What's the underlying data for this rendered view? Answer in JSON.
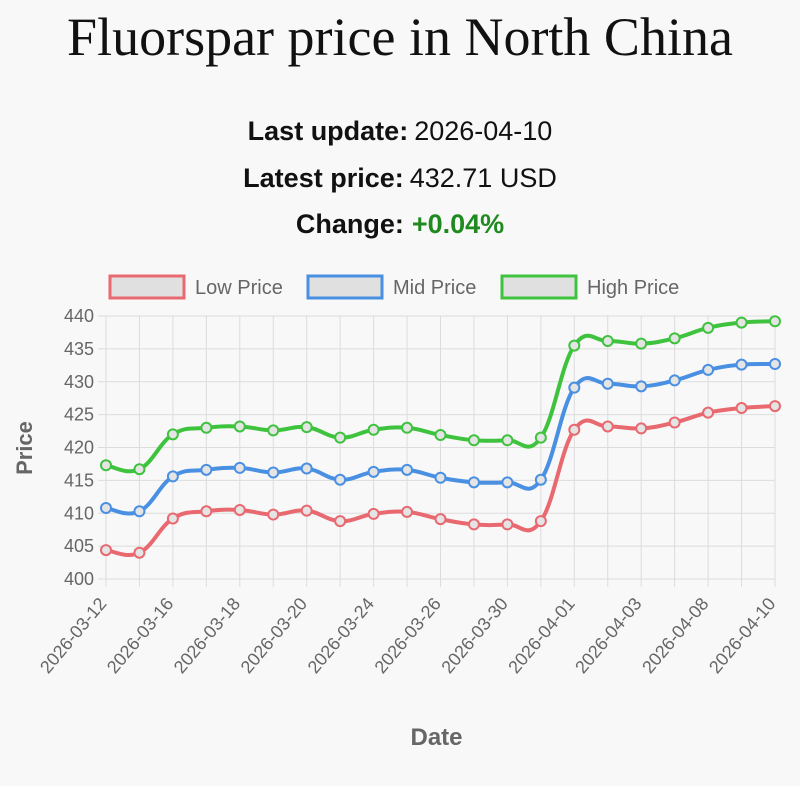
{
  "header": {
    "title": "Fluorspar price in North China",
    "last_update_label": "Last update:",
    "last_update_value": "2026-04-10",
    "latest_price_label": "Latest price:",
    "latest_price_value": "432.71 USD",
    "change_label": "Change:",
    "change_value": "+0.04%"
  },
  "chart_data": {
    "type": "line",
    "xlabel": "Date",
    "ylabel": "Price",
    "ylim": [
      400,
      440
    ],
    "yticks": [
      400,
      405,
      410,
      415,
      420,
      425,
      430,
      435,
      440
    ],
    "x_tick_labels": [
      "2026-03-12",
      "2026-03-16",
      "2026-03-18",
      "2026-03-20",
      "2026-03-24",
      "2026-03-26",
      "2026-03-30",
      "2026-04-01",
      "2026-04-03",
      "2026-04-08",
      "2026-04-10"
    ],
    "grid": true,
    "legend_position": "top",
    "series": [
      {
        "name": "Low Price",
        "color": "#e8696f",
        "values": [
          404.4,
          404.0,
          409.2,
          410.3,
          410.5,
          409.8,
          410.4,
          408.8,
          409.9,
          410.2,
          409.1,
          408.3,
          408.3,
          408.8,
          422.7,
          423.2,
          422.9,
          423.8,
          425.3,
          426.0,
          426.3
        ]
      },
      {
        "name": "Mid Price",
        "color": "#4a90e2",
        "values": [
          410.8,
          410.3,
          415.6,
          416.6,
          416.9,
          416.2,
          416.8,
          415.1,
          416.3,
          416.6,
          415.4,
          414.7,
          414.7,
          415.1,
          429.1,
          429.7,
          429.3,
          430.2,
          431.8,
          432.6,
          432.7
        ]
      },
      {
        "name": "High Price",
        "color": "#3fc33f",
        "values": [
          417.3,
          416.7,
          422.0,
          423.0,
          423.2,
          422.6,
          423.1,
          421.5,
          422.7,
          423.0,
          421.9,
          421.1,
          421.1,
          421.5,
          435.5,
          436.2,
          435.8,
          436.6,
          438.2,
          439.0,
          439.2
        ]
      }
    ]
  }
}
